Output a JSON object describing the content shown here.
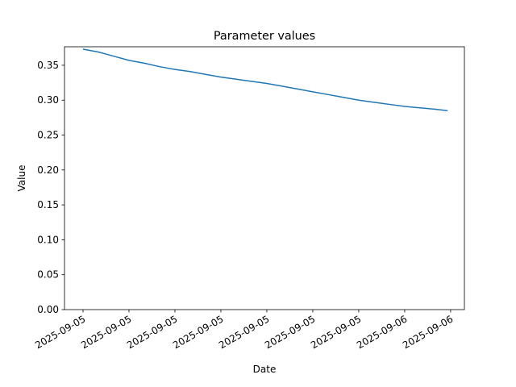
{
  "chart_data": {
    "type": "line",
    "title": "Parameter values",
    "x_label": "Date",
    "y_label": "Value",
    "x": [
      3,
      4,
      5,
      6,
      7,
      8,
      9,
      10,
      11,
      12,
      13,
      14,
      15,
      16,
      17,
      18,
      19,
      20,
      21,
      22,
      23,
      24,
      25,
      26,
      26.8
    ],
    "series": [
      {
        "name": "Value",
        "color": "#1f77b4",
        "values": [
          0.373,
          0.369,
          0.363,
          0.357,
          0.353,
          0.348,
          0.344,
          0.341,
          0.337,
          0.333,
          0.33,
          0.327,
          0.324,
          0.32,
          0.316,
          0.312,
          0.308,
          0.304,
          0.3,
          0.297,
          0.294,
          0.291,
          0.289,
          0.287,
          0.285
        ]
      }
    ],
    "xlim": [
      1.79,
      27.9
    ],
    "xticks": [
      {
        "value": 3,
        "label": "2025-09-05"
      },
      {
        "value": 6,
        "label": "2025-09-05"
      },
      {
        "value": 9,
        "label": "2025-09-05"
      },
      {
        "value": 12,
        "label": "2025-09-05"
      },
      {
        "value": 15,
        "label": "2025-09-05"
      },
      {
        "value": 18,
        "label": "2025-09-05"
      },
      {
        "value": 21,
        "label": "2025-09-05"
      },
      {
        "value": 24,
        "label": "2025-09-06"
      },
      {
        "value": 27,
        "label": "2025-09-06"
      }
    ],
    "ylim": [
      0,
      0.3765
    ],
    "yticks": [
      {
        "value": 0,
        "label": "0.00"
      },
      0.05,
      {
        "value": 0.1,
        "label": "0.10"
      },
      0.15,
      {
        "value": 0.2,
        "label": "0.20"
      },
      0.25,
      {
        "value": 0.3,
        "label": "0.30"
      },
      0.35
    ]
  }
}
